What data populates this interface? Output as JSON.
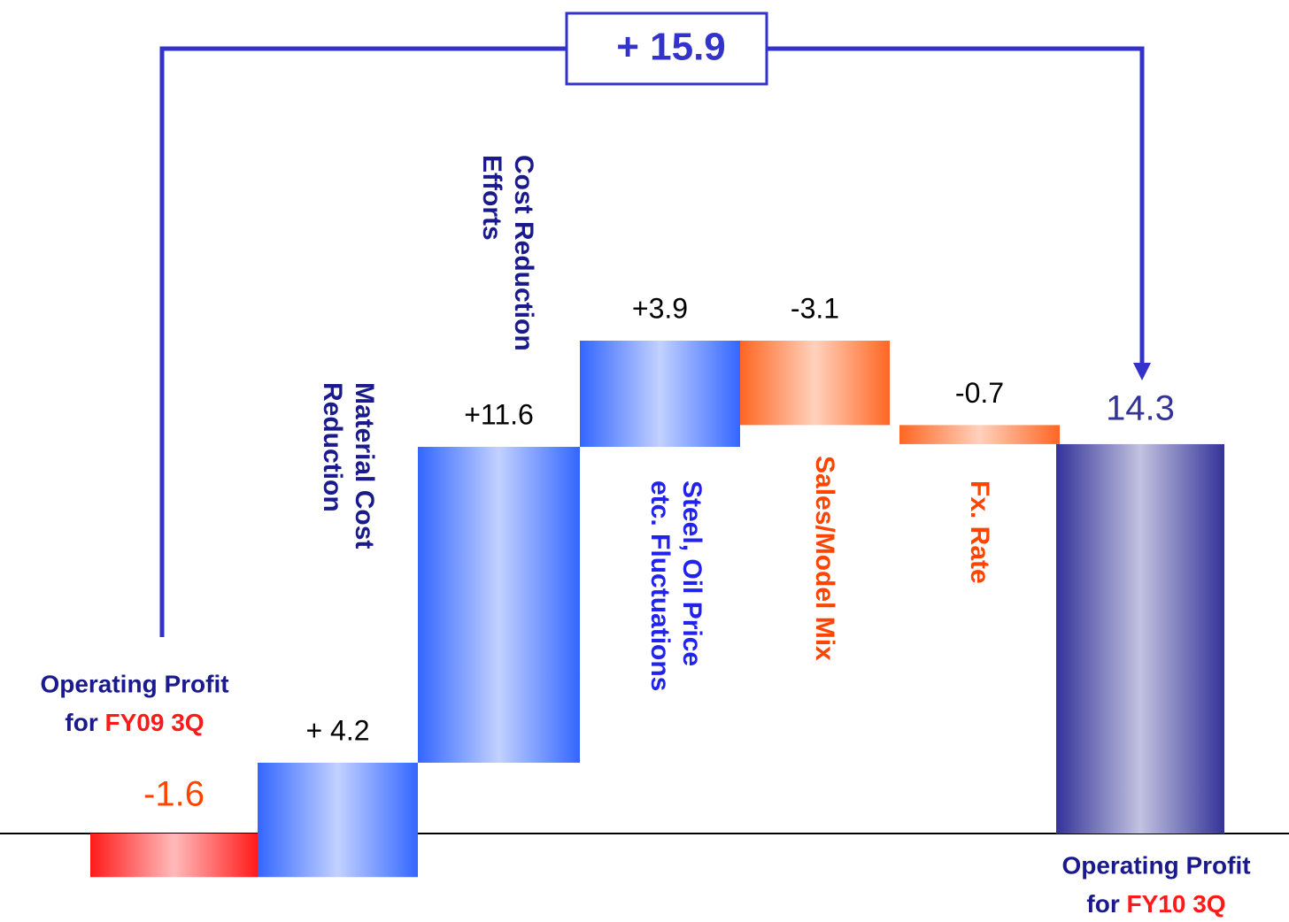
{
  "chart_data": {
    "type": "waterfall",
    "annotation": "+ 15.9",
    "categories": [
      [
        "Operating Profit",
        "for",
        "FY09 3Q"
      ],
      [
        "Material Cost",
        "Reduction"
      ],
      [
        "Cost Reduction",
        "Efforts"
      ],
      [
        "Steel, Oil Price",
        "etc. Fluctuations"
      ],
      [
        "Sales/Model Mix"
      ],
      [
        "Fx. Rate"
      ],
      [
        "Operating Profit",
        "for",
        "FY10 3Q"
      ]
    ],
    "values": [
      -1.6,
      4.2,
      11.6,
      3.9,
      -3.1,
      -0.7,
      14.3
    ],
    "value_labels": [
      "-1.6",
      "+ 4.2",
      "+11.6",
      "+3.9",
      "-3.1",
      "-0.7",
      "14.3"
    ],
    "kinds": [
      "start",
      "delta",
      "delta",
      "delta",
      "delta",
      "delta",
      "total"
    ],
    "colors": [
      "#ff1a1a",
      "#3366ff",
      "#3366ff",
      "#3366ff",
      "#ff6622",
      "#ff6622",
      "#333399"
    ],
    "label_colors": [
      "#1a1a8c",
      "#1a1a8c",
      "#1a1a8c",
      "#2222ee",
      "#ff4400",
      "#ff4400",
      "#1a1a8c"
    ],
    "period_color": "#ff1a1a"
  }
}
